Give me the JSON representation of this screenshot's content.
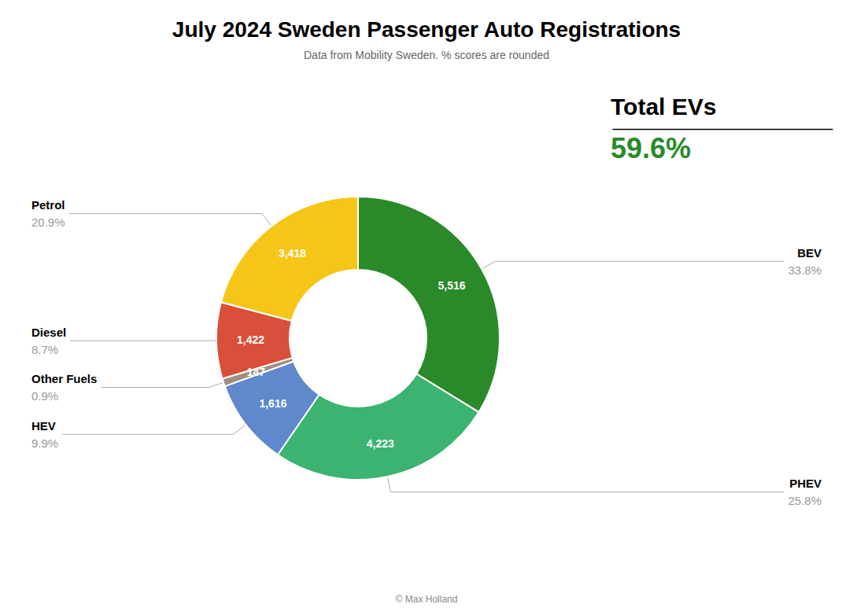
{
  "chart_data": {
    "type": "donut",
    "title": "July 2024 Sweden Passenger Auto Registrations",
    "subtitle": "Data from Mobility Sweden. % scores are rounded",
    "categories": [
      "BEV",
      "PHEV",
      "HEV",
      "Other Fuels",
      "Diesel",
      "Petrol"
    ],
    "values": [
      5516,
      4223,
      1616,
      147,
      1422,
      3418
    ],
    "value_labels": [
      "5,516",
      "4,223",
      "1,616",
      "147",
      "1,422",
      "3,418"
    ],
    "percentages": [
      {
        "value": 33.8,
        "label": "33.8%"
      },
      {
        "value": 25.8,
        "label": "25.8%"
      },
      {
        "value": 9.9,
        "label": "9.9%"
      },
      {
        "value": 0.9,
        "label": "0.9%"
      },
      {
        "value": 8.7,
        "label": "8.7%"
      },
      {
        "value": 20.9,
        "label": "20.9%"
      }
    ],
    "colors": [
      "#2a8a2a",
      "#3cb371",
      "#6088cc",
      "#a09080",
      "#d94f3a",
      "#f5c518"
    ],
    "data_labels": true,
    "legend": false,
    "annotations": [
      {
        "text": "Total EVs"
      },
      {
        "text": "59.6%",
        "color": "#2a8a2a"
      },
      {
        "text": "© Max Holland"
      }
    ]
  }
}
